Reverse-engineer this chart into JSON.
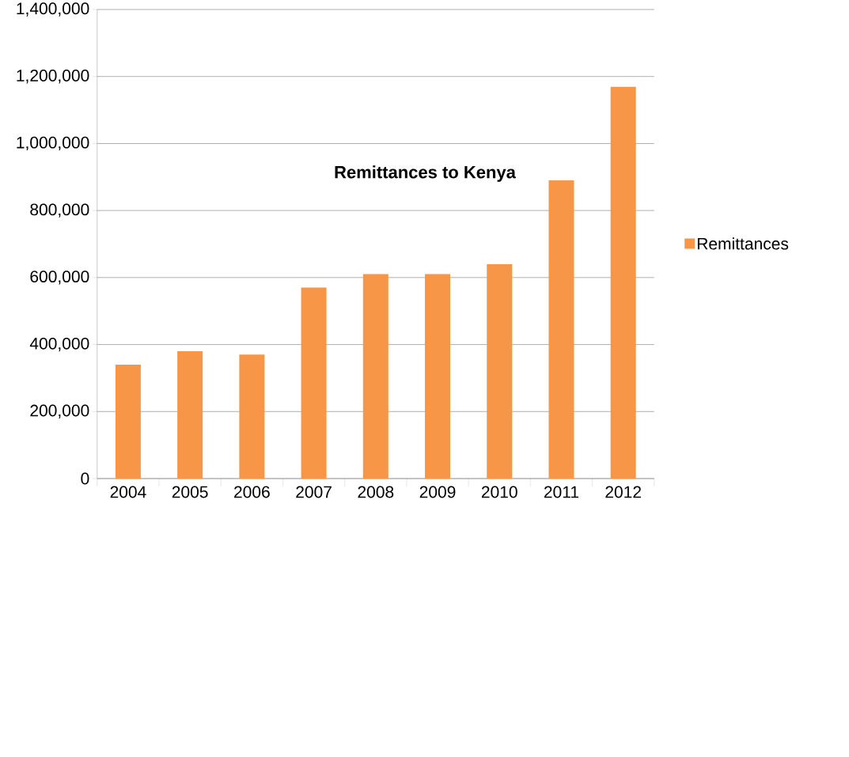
{
  "chart_data": {
    "type": "bar",
    "title": "Remittances to Kenya",
    "categories": [
      "2004",
      "2005",
      "2006",
      "2007",
      "2008",
      "2009",
      "2010",
      "2011",
      "2012"
    ],
    "series": [
      {
        "name": "Remittances",
        "color": "#f79646",
        "values": [
          340000,
          380000,
          370000,
          570000,
          610000,
          610000,
          640000,
          890000,
          1170000
        ]
      }
    ],
    "ylim": [
      0,
      1400000
    ],
    "yticks": [
      {
        "value": 0,
        "label": "0"
      },
      {
        "value": 200000,
        "label": "200,000"
      },
      {
        "value": 400000,
        "label": "400,000"
      },
      {
        "value": 600000,
        "label": "600,000"
      },
      {
        "value": 800000,
        "label": "800,000"
      },
      {
        "value": 1000000,
        "label": "1,000,000"
      },
      {
        "value": 1200000,
        "label": "1,200,000"
      },
      {
        "value": 1400000,
        "label": "1,400,000"
      }
    ],
    "grid": "y",
    "legend": "right"
  }
}
